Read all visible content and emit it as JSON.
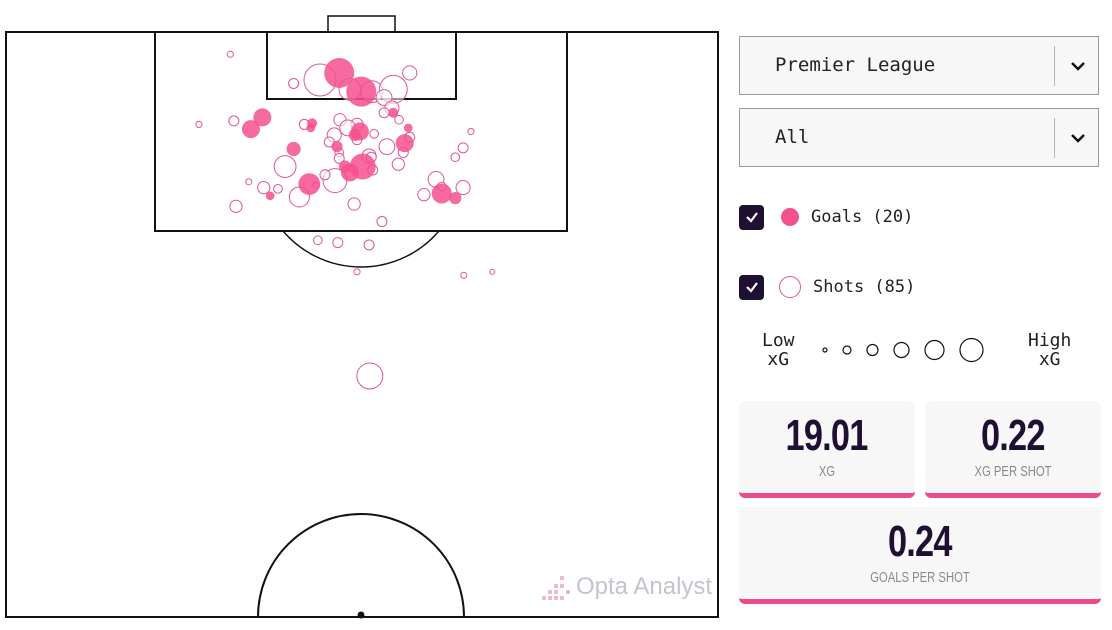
{
  "filters": {
    "competition": "Premier League",
    "situation": "All"
  },
  "legend": {
    "goals_label": "Goals (20)",
    "shots_label": "Shots (85)",
    "goals_checked": true,
    "shots_checked": true,
    "low_xg": "Low\nxG",
    "high_xg": "High\nxG",
    "size_scale_xg": [
      0.01,
      0.03,
      0.06,
      0.1,
      0.16,
      0.23
    ]
  },
  "stats": {
    "xg": {
      "value": "19.01",
      "label": "XG"
    },
    "xg_per_shot": {
      "value": "0.22",
      "label": "XG PER SHOT"
    },
    "goals_per_shot": {
      "value": "0.24",
      "label": "GOALS PER SHOT"
    }
  },
  "watermark": "Opta Analyst",
  "colors": {
    "goal": "#f5508e",
    "shot_stroke": "#e2559a",
    "card_accent": "#ee4a8c",
    "checkbox": "#1e0f33"
  },
  "chart_data": {
    "type": "scatter",
    "description_units": "x: 0-100 across pitch width, y: 0-50 distance from goal line along pitch length (half pitch); size by xG",
    "xlim": [
      0,
      100
    ],
    "ylim": [
      0,
      50
    ],
    "goals": [
      [
        46.8,
        3.5,
        0.36
      ],
      [
        49.9,
        5.1,
        0.36
      ],
      [
        36.0,
        7.3,
        0.13
      ],
      [
        34.4,
        8.3,
        0.13
      ],
      [
        40.4,
        10.0,
        0.08
      ],
      [
        43.0,
        7.8,
        0.04
      ],
      [
        48.3,
        12.0,
        0.13
      ],
      [
        47.6,
        11.5,
        0.06
      ],
      [
        42.6,
        13.0,
        0.19
      ],
      [
        37.1,
        14.0,
        0.03
      ],
      [
        61.2,
        13.8,
        0.16
      ],
      [
        63.1,
        14.2,
        0.06
      ],
      [
        56.0,
        9.5,
        0.13
      ],
      [
        54.4,
        6.9,
        0.04
      ],
      [
        56.5,
        8.2,
        0.03
      ],
      [
        49.0,
        8.8,
        0.06
      ],
      [
        49.7,
        8.5,
        0.13
      ],
      [
        42.8,
        8.2,
        0.03
      ],
      [
        50.1,
        11.5,
        0.27
      ],
      [
        46.5,
        9.8,
        0.05
      ]
    ],
    "shots": [
      [
        31.5,
        1.9,
        0.015
      ],
      [
        40.4,
        4.4,
        0.04
      ],
      [
        44.1,
        4.1,
        0.41
      ],
      [
        48.3,
        4.9,
        0.19
      ],
      [
        51.4,
        5.1,
        0.19
      ],
      [
        54.4,
        4.9,
        0.31
      ],
      [
        56.7,
        3.5,
        0.08
      ],
      [
        53.1,
        5.6,
        0.1
      ],
      [
        54.2,
        6.5,
        0.08
      ],
      [
        27.1,
        7.9,
        0.015
      ],
      [
        32.0,
        7.6,
        0.04
      ],
      [
        41.9,
        7.9,
        0.04
      ],
      [
        46.9,
        7.5,
        0.06
      ],
      [
        49.3,
        7.9,
        0.06
      ],
      [
        46.1,
        8.8,
        0.08
      ],
      [
        45.4,
        9.4,
        0.04
      ],
      [
        51.7,
        8.7,
        0.03
      ],
      [
        53.1,
        6.9,
        0.04
      ],
      [
        55.2,
        7.5,
        0.03
      ],
      [
        56.7,
        9.0,
        0.04
      ],
      [
        65.3,
        8.5,
        0.015
      ],
      [
        64.2,
        9.9,
        0.04
      ],
      [
        63.1,
        10.7,
        0.03
      ],
      [
        53.5,
        9.8,
        0.1
      ],
      [
        51.0,
        10.6,
        0.08
      ],
      [
        46.8,
        10.3,
        0.03
      ],
      [
        46.8,
        10.8,
        0.04
      ],
      [
        55.1,
        11.3,
        0.06
      ],
      [
        39.2,
        11.5,
        0.19
      ],
      [
        51.3,
        10.7,
        0.04
      ],
      [
        51.5,
        11.8,
        0.04
      ],
      [
        46.2,
        12.7,
        0.23
      ],
      [
        44.8,
        12.2,
        0.04
      ],
      [
        43.5,
        13.1,
        0.015
      ],
      [
        34.1,
        12.8,
        0.015
      ],
      [
        36.2,
        13.3,
        0.06
      ],
      [
        38.2,
        13.4,
        0.03
      ],
      [
        41.2,
        14.1,
        0.16
      ],
      [
        48.9,
        14.7,
        0.06
      ],
      [
        32.3,
        14.9,
        0.06
      ],
      [
        60.4,
        12.6,
        0.1
      ],
      [
        58.7,
        13.9,
        0.06
      ],
      [
        64.2,
        13.3,
        0.08
      ],
      [
        61.2,
        13.2,
        0.03
      ],
      [
        52.8,
        16.2,
        0.04
      ],
      [
        43.8,
        17.8,
        0.03
      ],
      [
        46.6,
        18.0,
        0.04
      ],
      [
        51.0,
        18.2,
        0.04
      ],
      [
        49.3,
        20.5,
        0.015
      ],
      [
        64.3,
        20.8,
        0.015
      ],
      [
        68.3,
        20.5,
        0.01
      ],
      [
        51.1,
        29.4,
        0.27
      ],
      [
        49.3,
        9.2,
        0.04
      ],
      [
        55.8,
        10.3,
        0.04
      ],
      [
        48.0,
        8.2,
        0.1
      ]
    ]
  }
}
